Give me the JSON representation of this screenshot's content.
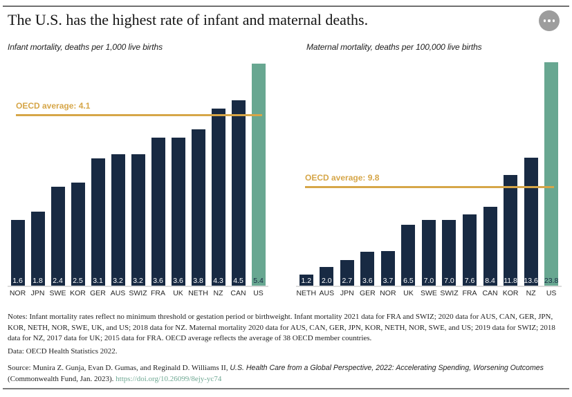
{
  "header": {
    "title": "The U.S. has the highest rate of infant and maternal deaths.",
    "menu_button": "more options"
  },
  "chart_data": [
    {
      "type": "bar",
      "title": "Infant mortality, deaths per 1,000 live births",
      "categories": [
        "NOR",
        "JPN",
        "SWE",
        "KOR",
        "GER",
        "AUS",
        "SWIZ",
        "FRA",
        "UK",
        "NETH",
        "NZ",
        "CAN",
        "US"
      ],
      "values": [
        1.6,
        1.8,
        2.4,
        2.5,
        3.1,
        3.2,
        3.2,
        3.6,
        3.6,
        3.8,
        4.3,
        4.5,
        5.4
      ],
      "highlight_category": "US",
      "reference_line": {
        "label": "OECD average: 4.1",
        "value": 4.1
      },
      "ylim": [
        0,
        5.4
      ],
      "grid": false,
      "legend": "none"
    },
    {
      "type": "bar",
      "title": "Maternal mortality, deaths per 100,000 live births",
      "categories": [
        "NETH",
        "AUS",
        "JPN",
        "GER",
        "NOR",
        "UK",
        "SWE",
        "SWIZ",
        "FRA",
        "CAN",
        "KOR",
        "NZ",
        "US"
      ],
      "values": [
        1.2,
        2.0,
        2.7,
        3.6,
        3.7,
        6.5,
        7.0,
        7.0,
        7.6,
        8.4,
        11.8,
        13.6,
        23.8
      ],
      "highlight_category": "US",
      "reference_line": {
        "label": "OECD average: 9.8",
        "value": 9.8
      },
      "ylim": [
        0,
        23.8
      ],
      "grid": false,
      "legend": "none"
    }
  ],
  "colors": {
    "bar": "#182a43",
    "highlight_bar": "#68a791",
    "reference": "#d6a648",
    "value_label": "#ffffff",
    "value_label_on_highlight": "#182a43",
    "link": "#6fa893"
  },
  "footer": {
    "notes": "Notes: Infant mortality rates reflect no minimum threshold or gestation period or birthweight. Infant mortality 2021 data for FRA and SWIZ; 2020 data for AUS, CAN, GER, JPN, KOR, NETH, NOR, SWE, UK, and US; 2018 data for NZ. Maternal mortality 2020 data for AUS, CAN, GER, JPN, KOR, NETH, NOR, SWE, and US; 2019 data for SWIZ; 2018 data for NZ, 2017 data for UK; 2015 data for FRA. OECD average reflects the average of 38 OECD member countries.",
    "data_line": "Data: OECD Health Statistics 2022.",
    "source_prefix": "Source: Munira Z. Gunja, Evan D. Gumas, and Reginald D. Williams II, ",
    "source_title_italic": "U.S. Health Care from a Global Perspective, 2022: Accelerating Spending, Worsening Outcomes",
    "source_suffix": " (Commonwealth Fund, Jan. 2023). ",
    "source_link": "https://doi.org/10.26099/8ejy-yc74"
  }
}
